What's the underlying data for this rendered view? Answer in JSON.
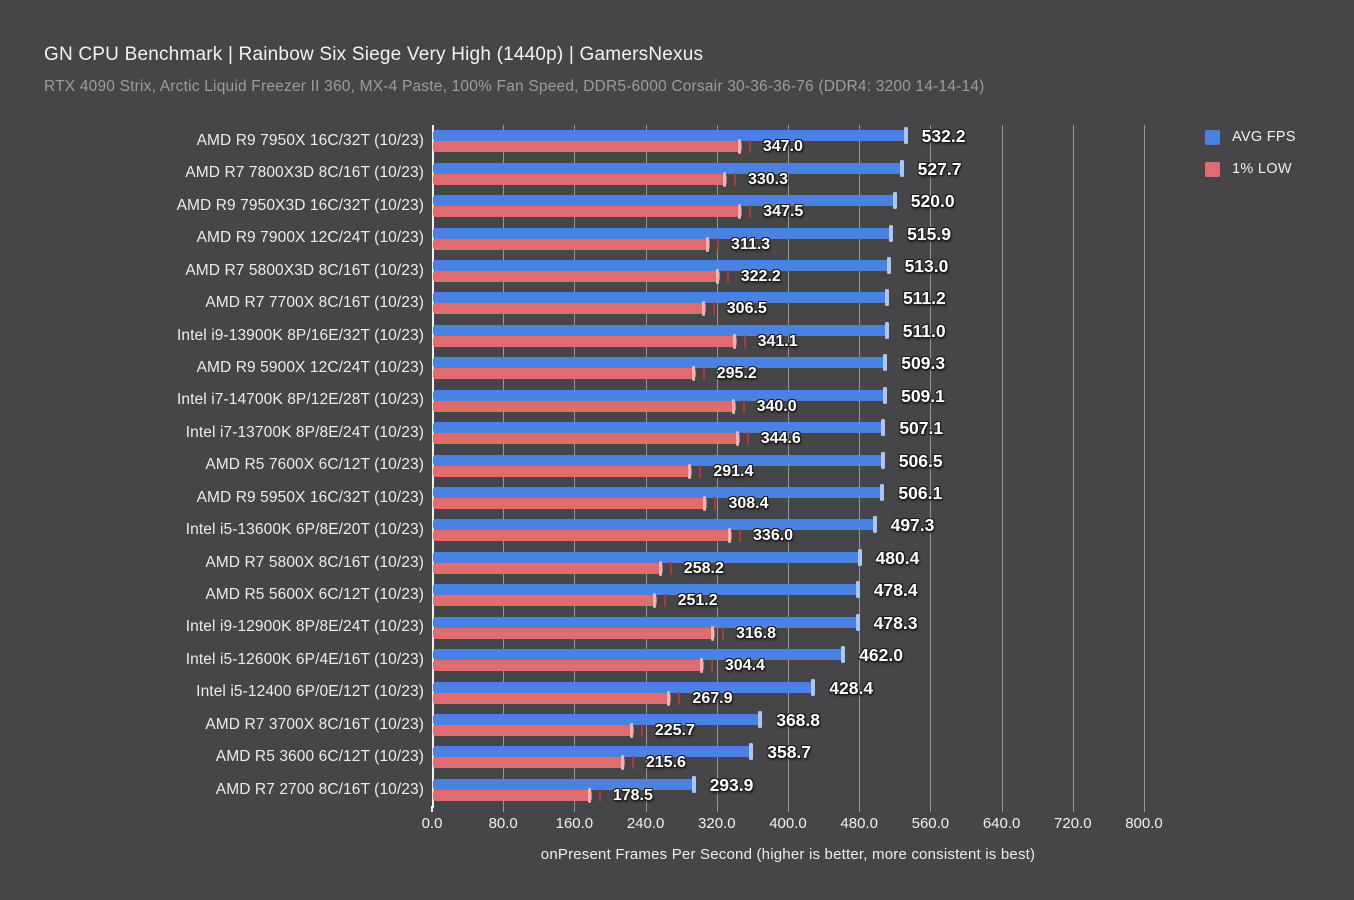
{
  "title": "GN CPU Benchmark | Rainbow Six Siege Very High (1440p) | GamersNexus",
  "subtitle": "RTX 4090 Strix, Arctic Liquid Freezer II 360, MX-4 Paste, 100% Fan Speed, DDR5-6000 Corsair 30-36-36-76 (DDR4: 3200 14-14-14)",
  "legend": [
    {
      "label": "AVG FPS",
      "color": "#4a82e4"
    },
    {
      "label": "1% LOW",
      "color": "#e06c70"
    }
  ],
  "colors": {
    "background": "#464648",
    "avg_bar": "#4a82e4",
    "avg_cap": "#a9c7f2",
    "low_bar": "#e06c70",
    "low_cap": "#f3b3b5",
    "low_whisker": "#a83c40",
    "gridline": "#97979a",
    "axis": "#f2f2f2",
    "label_text": "#ececec",
    "subtitle_text": "#9c9c9f"
  },
  "chart_data": {
    "type": "bar",
    "orientation": "horizontal",
    "title": "GN CPU Benchmark | Rainbow Six Siege Very High (1440p) | GamersNexus",
    "xlabel": "onPresent Frames Per Second (higher is better, more consistent is best)",
    "xlim": [
      0,
      800
    ],
    "xticks": [
      "0.0",
      "80.0",
      "160.0",
      "240.0",
      "320.0",
      "400.0",
      "480.0",
      "560.0",
      "640.0",
      "720.0",
      "800.0"
    ],
    "grid": true,
    "legend_position": "top-right",
    "categories": [
      "AMD R9 7950X 16C/32T (10/23)",
      "AMD R7 7800X3D 8C/16T (10/23)",
      "AMD R9 7950X3D 16C/32T (10/23)",
      "AMD R9 7900X 12C/24T (10/23)",
      "AMD R7 5800X3D 8C/16T (10/23)",
      "AMD R7 7700X 8C/16T (10/23)",
      "Intel i9-13900K 8P/16E/32T (10/23)",
      "AMD R9 5900X 12C/24T (10/23)",
      "Intel i7-14700K 8P/12E/28T (10/23)",
      "Intel i7-13700K 8P/8E/24T (10/23)",
      "AMD R5 7600X 6C/12T (10/23)",
      "AMD R9 5950X 16C/32T (10/23)",
      "Intel i5-13600K 6P/8E/20T (10/23)",
      "AMD R7 5800X 8C/16T (10/23)",
      "AMD R5 5600X 6C/12T (10/23)",
      "Intel i9-12900K 8P/8E/24T (10/23)",
      "Intel i5-12600K 6P/4E/16T (10/23)",
      "Intel i5-12400 6P/0E/12T (10/23)",
      "AMD R7 3700X 8C/16T (10/23)",
      "AMD R5 3600 6C/12T (10/23)",
      "AMD R7 2700 8C/16T (10/23)"
    ],
    "series": [
      {
        "name": "AVG FPS",
        "values": [
          532.2,
          527.7,
          520.0,
          515.9,
          513.0,
          511.2,
          511.0,
          509.3,
          509.1,
          507.1,
          506.5,
          506.1,
          497.3,
          480.4,
          478.4,
          478.3,
          462.0,
          428.4,
          368.8,
          358.7,
          293.9
        ]
      },
      {
        "name": "1% LOW",
        "values": [
          347.0,
          330.3,
          347.5,
          311.3,
          322.2,
          306.5,
          341.1,
          295.2,
          340.0,
          344.6,
          291.4,
          308.4,
          336.0,
          258.2,
          251.2,
          316.8,
          304.4,
          267.9,
          225.7,
          215.6,
          178.5
        ]
      }
    ]
  }
}
